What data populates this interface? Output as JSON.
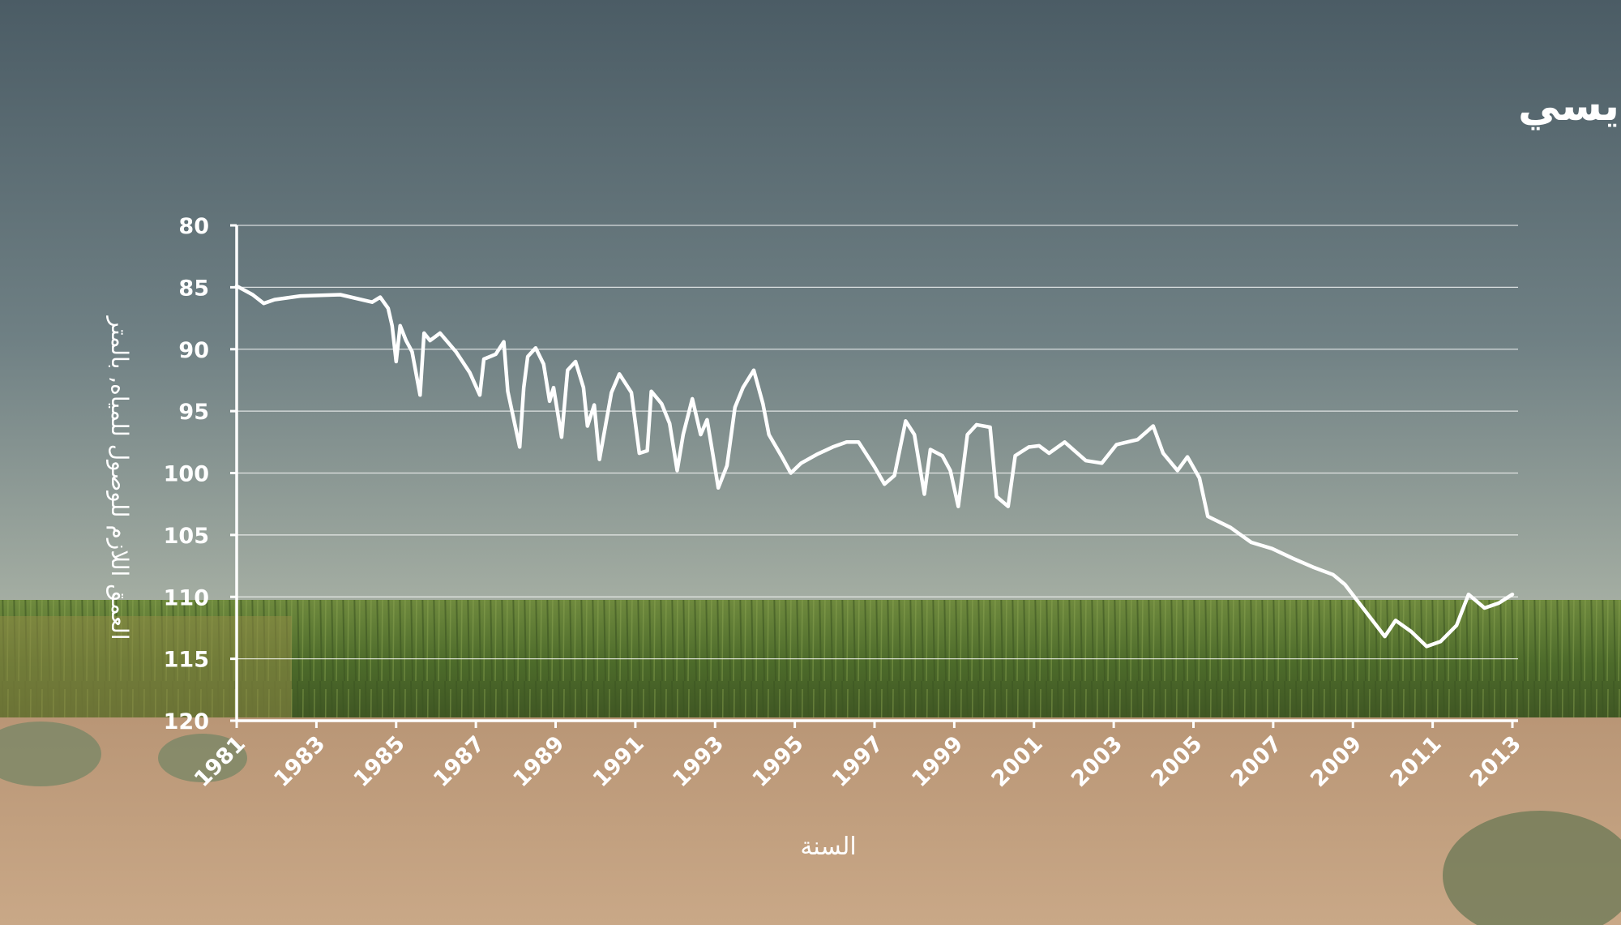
{
  "chart_data": {
    "type": "line",
    "title": "مستويات المياه الجوفية في بئر سهل الصوان - حوض الديسي",
    "x_label": "السنة",
    "y_label": "العمق اللازم للوصول للمياه, بالمتر",
    "color": "#ffffff",
    "grid": true,
    "y_inverted": true,
    "xlim": [
      1981,
      2013
    ],
    "xticks": [
      1981,
      1983,
      1985,
      1987,
      1989,
      1991,
      1993,
      1995,
      1997,
      1999,
      2001,
      2003,
      2005,
      2007,
      2009,
      2011,
      2013
    ],
    "ylim": [
      80,
      120
    ],
    "yticks": [
      80,
      85,
      90,
      95,
      100,
      105,
      110,
      115,
      120
    ],
    "x": [
      1981.0,
      1981.4,
      1981.68,
      1981.95,
      1982.6,
      1983.6,
      1984.4,
      1984.6,
      1984.8,
      1984.9,
      1985.0,
      1985.1,
      1985.25,
      1985.4,
      1985.6,
      1985.7,
      1985.85,
      1986.1,
      1986.5,
      1986.85,
      1987.1,
      1987.2,
      1987.5,
      1987.7,
      1987.8,
      1988.1,
      1988.2,
      1988.3,
      1988.5,
      1988.7,
      1988.85,
      1988.95,
      1989.15,
      1989.3,
      1989.5,
      1989.7,
      1989.8,
      1989.97,
      1990.1,
      1990.4,
      1990.6,
      1990.9,
      1991.1,
      1991.3,
      1991.4,
      1991.66,
      1991.86,
      1992.05,
      1992.2,
      1992.43,
      1992.64,
      1992.8,
      1992.95,
      1993.08,
      1993.3,
      1993.5,
      1993.7,
      1993.97,
      1994.2,
      1994.35,
      1994.66,
      1994.9,
      1995.16,
      1995.55,
      1995.95,
      1996.3,
      1996.6,
      1997.0,
      1997.25,
      1997.5,
      1997.78,
      1998.0,
      1998.25,
      1998.4,
      1998.7,
      1998.9,
      1999.1,
      1999.33,
      1999.56,
      1999.9,
      2000.06,
      2000.35,
      2000.53,
      2000.87,
      2001.13,
      2001.38,
      2001.77,
      2002.3,
      2002.7,
      2003.07,
      2003.6,
      2003.99,
      2004.24,
      2004.6,
      2004.85,
      2005.15,
      2005.36,
      2005.93,
      2006.45,
      2006.97,
      2007.5,
      2008.0,
      2008.5,
      2008.8,
      2009.3,
      2009.8,
      2010.07,
      2010.46,
      2010.85,
      2011.2,
      2011.6,
      2011.9,
      2012.3,
      2012.66,
      2013.0
    ],
    "values": [
      84.9,
      85.6,
      86.3,
      86.0,
      85.7,
      85.6,
      86.2,
      85.8,
      86.7,
      88.1,
      91.0,
      88.1,
      89.3,
      90.2,
      93.7,
      88.7,
      89.3,
      88.7,
      90.2,
      91.9,
      93.7,
      90.8,
      90.4,
      89.4,
      93.4,
      97.9,
      93.1,
      90.6,
      89.9,
      91.2,
      94.2,
      93.1,
      97.1,
      91.7,
      91.0,
      93.1,
      96.2,
      94.5,
      98.9,
      93.5,
      92.0,
      93.5,
      98.4,
      98.2,
      93.4,
      94.4,
      96.0,
      99.8,
      96.9,
      94.0,
      96.9,
      95.7,
      98.6,
      101.2,
      99.4,
      94.7,
      93.1,
      91.7,
      94.4,
      96.9,
      98.6,
      100.0,
      99.2,
      98.5,
      97.9,
      97.5,
      97.5,
      99.5,
      100.9,
      100.2,
      95.8,
      96.9,
      101.7,
      98.1,
      98.6,
      99.8,
      102.7,
      96.9,
      96.1,
      96.3,
      101.9,
      102.7,
      98.6,
      97.9,
      97.8,
      98.4,
      97.5,
      99.0,
      99.2,
      97.7,
      97.3,
      96.2,
      98.4,
      99.8,
      98.7,
      100.4,
      103.5,
      104.4,
      105.6,
      106.1,
      106.9,
      107.6,
      108.2,
      109.0,
      111.1,
      113.2,
      111.9,
      112.8,
      114.0,
      113.6,
      112.3,
      109.8,
      110.9,
      110.5,
      109.8
    ]
  }
}
